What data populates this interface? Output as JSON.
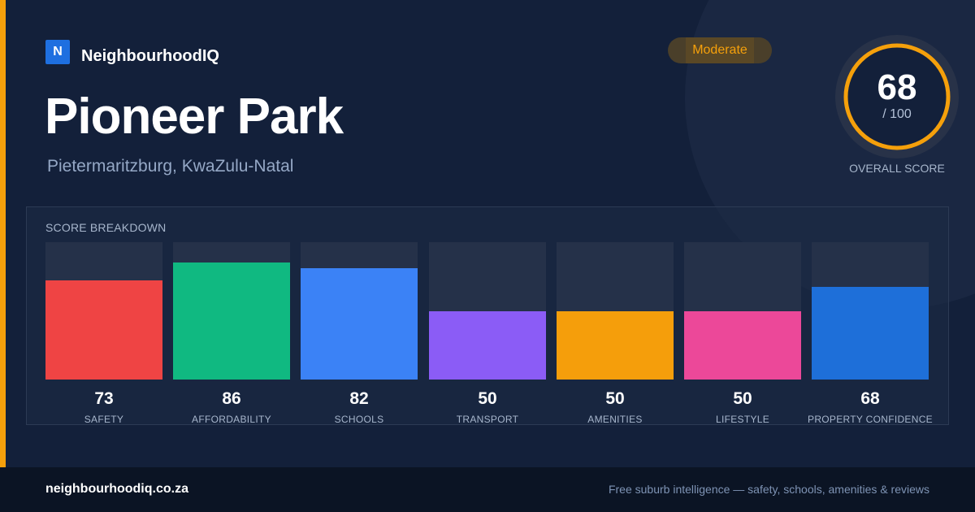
{
  "colors": {
    "background": "#13203a",
    "accent": "#f5a00b",
    "brand_blue": "#1e6fe0",
    "footer_background": "#0b1424"
  },
  "brand": {
    "logo_letter": "N",
    "name": "NeighbourhoodIQ"
  },
  "suburb": {
    "name": "Pioneer Park",
    "location": "Pietermaritzburg, KwaZulu-Natal"
  },
  "rating_badge": {
    "label": "Moderate"
  },
  "overall": {
    "value": "68",
    "max_text": "/ 100",
    "label": "OVERALL SCORE",
    "fraction": 0.68,
    "color": "#f5a00b"
  },
  "breakdown": {
    "label": "SCORE BREAKDOWN",
    "max": 100,
    "items": [
      {
        "value": 73,
        "value_text": "73",
        "label": "SAFETY",
        "color": "#ef4444"
      },
      {
        "value": 86,
        "value_text": "86",
        "label": "AFFORDABILITY",
        "color": "#10b981"
      },
      {
        "value": 82,
        "value_text": "82",
        "label": "SCHOOLS",
        "color": "#3b82f6"
      },
      {
        "value": 50,
        "value_text": "50",
        "label": "TRANSPORT",
        "color": "#8b5cf6"
      },
      {
        "value": 50,
        "value_text": "50",
        "label": "AMENITIES",
        "color": "#f59e0b"
      },
      {
        "value": 50,
        "value_text": "50",
        "label": "LIFESTYLE",
        "color": "#ec4899"
      },
      {
        "value": 68,
        "value_text": "68",
        "label": "PROPERTY CONFIDENCE",
        "color": "#1e6fd9"
      }
    ]
  },
  "footer": {
    "url": "neighbourhoodiq.co.za",
    "tagline": "Free suburb intelligence — safety, schools, amenities & reviews"
  }
}
